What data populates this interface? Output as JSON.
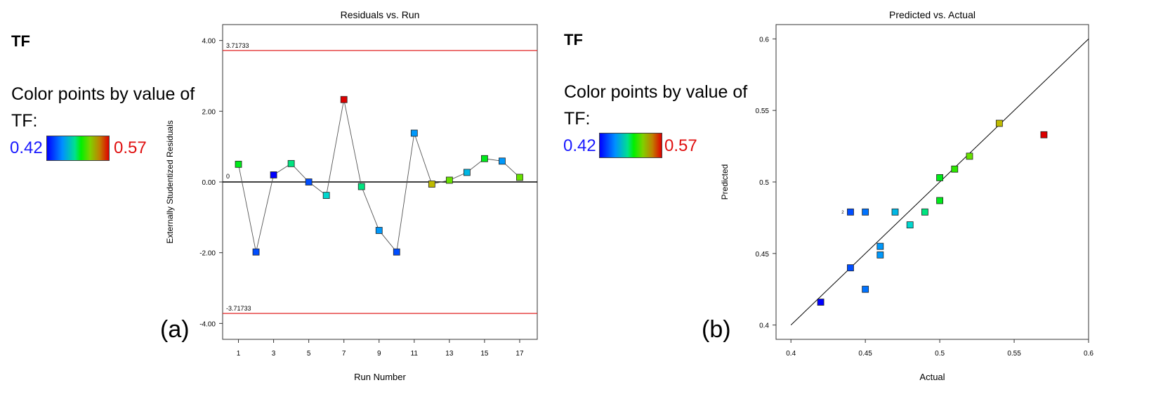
{
  "legend_a": {
    "response": "TF",
    "color_by_line1": "Color points by value of",
    "color_by_line2": "TF:",
    "min_label": "0.42",
    "max_label": "0.57",
    "panel_label": "(a)"
  },
  "legend_b": {
    "response": "TF",
    "color_by_line1": "Color points by value of",
    "color_by_line2": "TF:",
    "min_label": "0.42",
    "max_label": "0.57",
    "panel_label": "(b)"
  },
  "colors": {
    "limit_line": "#e02020",
    "scale_low": "#0000ff",
    "scale_high": "#e00000"
  },
  "chart_data": [
    {
      "type": "line",
      "title": "Residuals vs. Run",
      "xlabel": "Run Number",
      "ylabel": "Externally Studentized Residuals",
      "xlim": [
        0.1,
        18.0
      ],
      "ylim": [
        -4.45,
        4.45
      ],
      "xticks": [
        "1",
        "3",
        "5",
        "7",
        "9",
        "11",
        "13",
        "15",
        "17"
      ],
      "yticks": [
        "4.00",
        "2.00",
        "0.00",
        "-2.00",
        "-4.00"
      ],
      "zero_label": "0",
      "upper_limit": 3.71733,
      "upper_limit_label": "3.71733",
      "lower_limit": -3.71733,
      "lower_limit_label": "-3.71733",
      "x": [
        1,
        2,
        3,
        4,
        5,
        6,
        7,
        8,
        9,
        10,
        11,
        12,
        13,
        14,
        15,
        16,
        17
      ],
      "y": [
        0.5,
        -1.98,
        0.2,
        0.52,
        0.0,
        -0.38,
        2.33,
        -0.13,
        -1.37,
        -1.98,
        1.38,
        -0.06,
        0.05,
        0.27,
        0.66,
        0.59,
        0.13
      ],
      "tf": [
        0.5,
        0.44,
        0.42,
        0.49,
        0.44,
        0.48,
        0.57,
        0.49,
        0.46,
        0.44,
        0.46,
        0.54,
        0.52,
        0.47,
        0.5,
        0.46,
        0.52
      ],
      "grid": false
    },
    {
      "type": "scatter",
      "title": "Predicted vs. Actual",
      "xlabel": "Actual",
      "ylabel": "Predicted",
      "xlim": [
        0.39,
        0.6
      ],
      "ylim": [
        0.39,
        0.61
      ],
      "xticks": [
        "0.4",
        "0.45",
        "0.5",
        "0.55",
        "0.6"
      ],
      "yticks": [
        "0.6",
        "0.55",
        "0.5",
        "0.45",
        "0.4"
      ],
      "diagonal": [
        0.4,
        0.6
      ],
      "points_label": "2",
      "x": [
        0.42,
        0.44,
        0.44,
        0.45,
        0.45,
        0.46,
        0.46,
        0.47,
        0.48,
        0.49,
        0.5,
        0.5,
        0.51,
        0.52,
        0.54,
        0.57
      ],
      "y": [
        0.416,
        0.44,
        0.479,
        0.479,
        0.425,
        0.455,
        0.449,
        0.479,
        0.47,
        0.479,
        0.503,
        0.487,
        0.509,
        0.518,
        0.541,
        0.533
      ],
      "grid": false
    }
  ]
}
